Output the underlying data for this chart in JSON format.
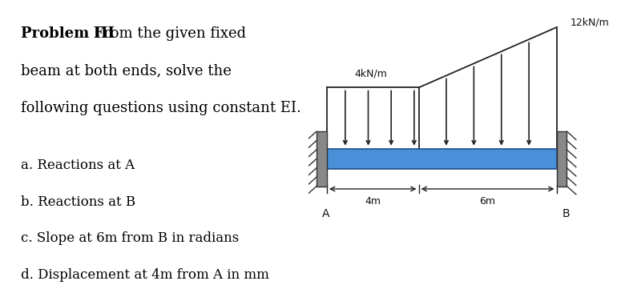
{
  "title_bold": "Problem III",
  "title_rest": ". From the given fixed",
  "line2": "beam at both ends, solve the",
  "line3": "following questions using constant EI.",
  "questions": [
    "a. Reactions at A",
    "b. Reactions at B",
    "c. Slope at 6m from B in radians",
    "d. Displacement at 4m from A in mm"
  ],
  "beam_color": "#4a90d9",
  "beam_edge_color": "#1a4f90",
  "udl_left_value": "4kN/m",
  "udl_right_value": "12kN/m",
  "dim_4m": "4m",
  "dim_6m": "6m",
  "label_A": "A",
  "label_B": "B",
  "background_color": "#ffffff",
  "line_color": "#222222",
  "wall_color": "#888888",
  "wall_edge_color": "#333333"
}
